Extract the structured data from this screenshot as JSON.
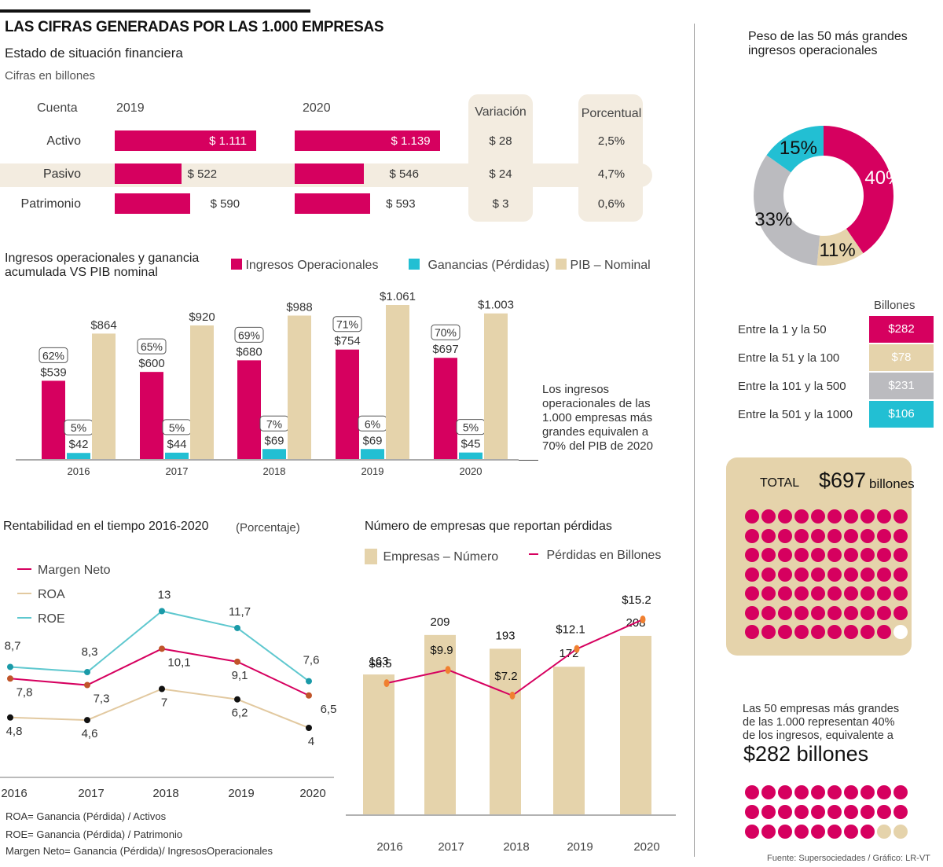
{
  "header": {
    "title": "LAS CIFRAS GENERADAS POR LAS 1.000 EMPRESAS",
    "subtitle": "Estado de situación financiera",
    "units": "Cifras en billones"
  },
  "balance": {
    "col_cuenta": "Cuenta",
    "col_2019": "2019",
    "col_2020": "2020",
    "col_variacion": "Variación",
    "col_porcentual": "Porcentual",
    "rows": [
      {
        "cuenta": "Activo",
        "v2019": 1111,
        "l2019": "$ 1.111",
        "v2020": 1139,
        "l2020": "$ 1.139",
        "variacion": "$ 28",
        "porcentual": "2,5%"
      },
      {
        "cuenta": "Pasivo",
        "v2019": 522,
        "l2019": "$ 522",
        "v2020": 546,
        "l2020": "$ 546",
        "variacion": "$ 24",
        "porcentual": "4,7%"
      },
      {
        "cuenta": "Patrimonio",
        "v2019": 590,
        "l2019": "$ 590",
        "v2020": 593,
        "l2020": "$ 593",
        "variacion": "$ 3",
        "porcentual": "0,6%"
      }
    ]
  },
  "colors": {
    "magenta": "#d6005f",
    "cyan": "#22bfd3",
    "beige": "#e5d3ab",
    "gray": "#bbbbbf",
    "roe": "#5fc8cf",
    "roa": "#e2c9a0",
    "marker_orange": "#f08030",
    "marker_teal": "#1a9aa8",
    "marker_brown": "#c0552a"
  },
  "chart_data": [
    {
      "type": "bar",
      "title": "Ingresos operacionales y ganancia acumulada VS PIB nominal",
      "categories": [
        "2016",
        "2017",
        "2018",
        "2019",
        "2020"
      ],
      "series": [
        {
          "name": "Ingresos Operacionales",
          "values": [
            539,
            600,
            680,
            754,
            697
          ],
          "labels": [
            "$539",
            "$600",
            "$680",
            "$754",
            "$697"
          ],
          "pct_labels": [
            "62%",
            "65%",
            "69%",
            "71%",
            "70%"
          ]
        },
        {
          "name": "Ganancias (Pérdidas)",
          "values": [
            42,
            44,
            69,
            69,
            45
          ],
          "labels": [
            "$42",
            "$44",
            "$69",
            "$69",
            "$45"
          ],
          "pct_labels": [
            "5%",
            "5%",
            "7%",
            "6%",
            "5%"
          ]
        },
        {
          "name": "PIB – Nominal",
          "values": [
            864,
            920,
            988,
            1061,
            1003
          ],
          "labels": [
            "$864",
            "$920",
            "$988",
            "$1.061",
            "$1.003"
          ]
        }
      ],
      "ylim": [
        0,
        1100
      ],
      "annotation": "Los ingresos operacionales de las 1.000 empresas más grandes equivalen a 70% del PIB de 2020"
    },
    {
      "type": "line",
      "title": "Rentabilidad en el tiempo 2016-2020",
      "unit_note": "(Porcentaje)",
      "x": [
        "2016",
        "2017",
        "2018",
        "2019",
        "2020"
      ],
      "series": [
        {
          "name": "Margen Neto",
          "values": [
            7.8,
            7.3,
            10.1,
            9.1,
            6.5
          ],
          "labels": [
            "7,8",
            "7,3",
            "10,1",
            "9,1",
            "6,5"
          ]
        },
        {
          "name": "ROA",
          "values": [
            4.8,
            4.6,
            7,
            6.2,
            4
          ],
          "labels": [
            "4,8",
            "4,6",
            "7",
            "6,2",
            "4"
          ]
        },
        {
          "name": "ROE",
          "values": [
            8.7,
            8.3,
            13,
            11.7,
            7.6
          ],
          "labels": [
            "8,7",
            "8,3",
            "13",
            "11,7",
            "7,6"
          ]
        }
      ],
      "ylim": [
        0,
        15
      ],
      "notes": [
        "ROA= Ganancia (Pérdida) / Activos",
        "ROE= Ganancia (Pérdida) / Patrimonio",
        "Margen Neto= Ganancia (Pérdida)/ IngresosOperacionales"
      ]
    },
    {
      "type": "bar",
      "title": "Número de empresas que reportan pérdidas",
      "categories": [
        "2016",
        "2017",
        "2018",
        "2019",
        "2020"
      ],
      "series": [
        {
          "name": "Empresas – Número",
          "values": [
            163,
            209,
            193,
            172,
            208
          ],
          "labels": [
            "163",
            "209",
            "193",
            "172",
            "208"
          ]
        },
        {
          "name": "Pérdidas en Billones",
          "type": "line",
          "values": [
            8.5,
            9.9,
            7.2,
            12.1,
            15.2
          ],
          "labels": [
            "$8.5",
            "$9.9",
            "$7.2",
            "$12.1",
            "$15.2"
          ]
        }
      ],
      "ylim_bars": [
        0,
        240
      ],
      "ylim_line": [
        0,
        30
      ]
    },
    {
      "type": "pie",
      "title": "Peso de las 50 más grandes ingresos operacionales",
      "slices": [
        {
          "name": "Entre la 1 y la 50",
          "pct": 40,
          "label": "40%",
          "billones": "$282"
        },
        {
          "name": "Entre la 51 y la 100",
          "pct": 11,
          "label": "11%",
          "billones": "$78"
        },
        {
          "name": "Entre la 101 y la 500",
          "pct": 33,
          "label": "33%",
          "billones": "$231"
        },
        {
          "name": "Entre la 501 y la 1000",
          "pct": 15,
          "label": "15%",
          "billones": "$106"
        }
      ],
      "table_header": "Billones"
    }
  ],
  "total_box": {
    "label": "TOTAL",
    "amount": "$697",
    "unit": "billones",
    "filled_dots": 69,
    "total_dots": 70
  },
  "top50": {
    "text": "Las 50 empresas más grandes de las 1.000 representan 40% de los ingresos, equivalente a",
    "amount": "$282 billones",
    "filled_dots": 28,
    "total_dots": 30
  },
  "source": "Fuente: Supersociedades  / Gráfico: LR-VT"
}
